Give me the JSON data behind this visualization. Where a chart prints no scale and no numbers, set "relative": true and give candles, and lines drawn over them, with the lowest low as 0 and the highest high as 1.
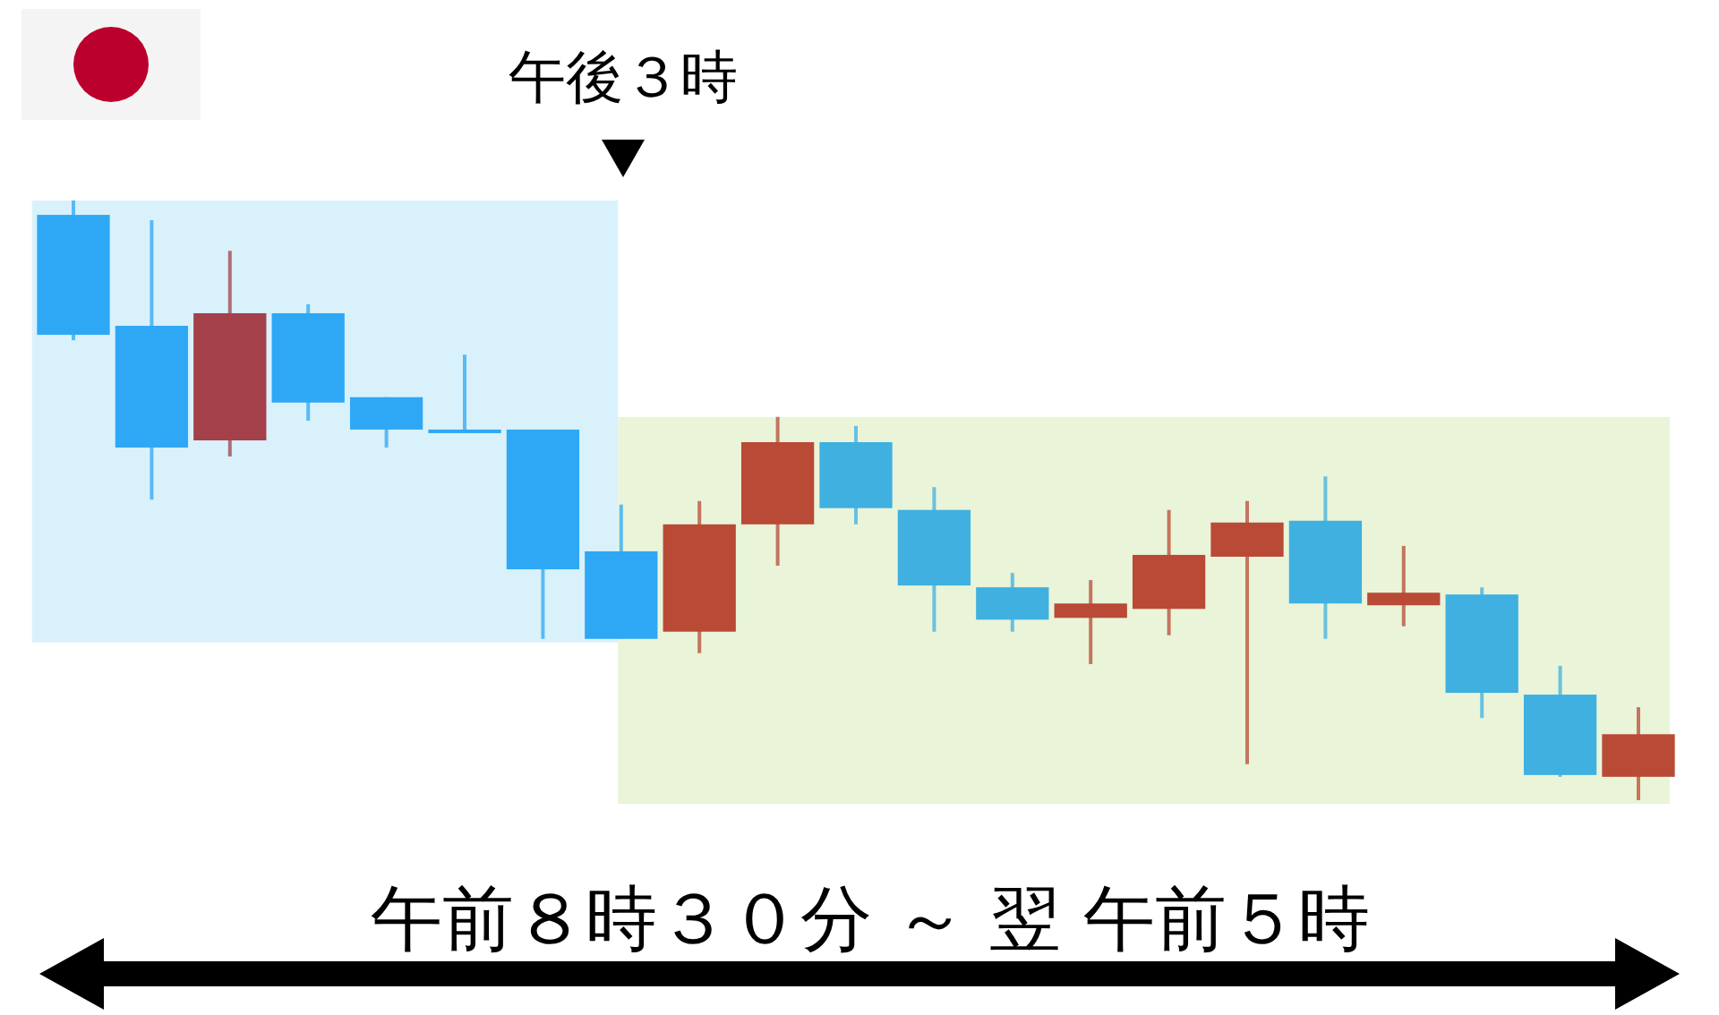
{
  "chart_data": {
    "type": "candlestick",
    "relative": true,
    "categories": [
      null,
      null,
      null,
      null,
      null,
      null,
      null,
      null,
      null,
      null,
      null,
      null,
      null,
      null,
      null,
      null,
      null,
      null,
      null,
      null,
      null
    ],
    "ohlc": [
      [
        0.976,
        1,
        0.767,
        0.776
      ],
      [
        0.791,
        0.967,
        0.501,
        0.588
      ],
      [
        0.6,
        0.916,
        0.573,
        0.812
      ],
      [
        0.812,
        0.827,
        0.633,
        0.663
      ],
      [
        0.672,
        0.672,
        0.588,
        0.618
      ],
      [
        0.618,
        0.743,
        0.615,
        0.615
      ],
      [
        0.618,
        0.618,
        0.269,
        0.385
      ],
      [
        0.415,
        0.493,
        0.269,
        0.269
      ],
      [
        0.281,
        0.499,
        0.245,
        0.46
      ],
      [
        0.46,
        0.639,
        0.391,
        0.597
      ],
      [
        0.597,
        0.624,
        0.46,
        0.487
      ],
      [
        0.484,
        0.522,
        0.281,
        0.358
      ],
      [
        0.355,
        0.379,
        0.281,
        0.301
      ],
      [
        0.304,
        0.367,
        0.227,
        0.328
      ],
      [
        0.319,
        0.484,
        0.275,
        0.409
      ],
      [
        0.406,
        0.499,
        0.06,
        0.463
      ],
      [
        0.466,
        0.54,
        0.269,
        0.328
      ],
      [
        0.325,
        0.424,
        0.29,
        0.346
      ],
      [
        0.343,
        0.355,
        0.137,
        0.179
      ],
      [
        0.176,
        0.224,
        0.039,
        0.042
      ],
      [
        0.039,
        0.155,
        0,
        0.11
      ]
    ],
    "colors": [
      "#2ea8f5",
      "#2ea8f5",
      "#a3404a",
      "#2ea8f5",
      "#2ea8f5",
      "#2ea8f5",
      "#2ea8f5",
      "#2ea8f5",
      "#b94a36",
      "#b94a36",
      "#3fb0e0",
      "#3fb0e0",
      "#3fb0e0",
      "#b94a36",
      "#b94a36",
      "#b94a36",
      "#3fb0e0",
      "#b94a36",
      "#3fb0e0",
      "#3fb0e0",
      "#b94a36"
    ],
    "annotations": [
      "午後３時",
      "午前８時３０分 ～ 翌 午前５時"
    ]
  }
}
